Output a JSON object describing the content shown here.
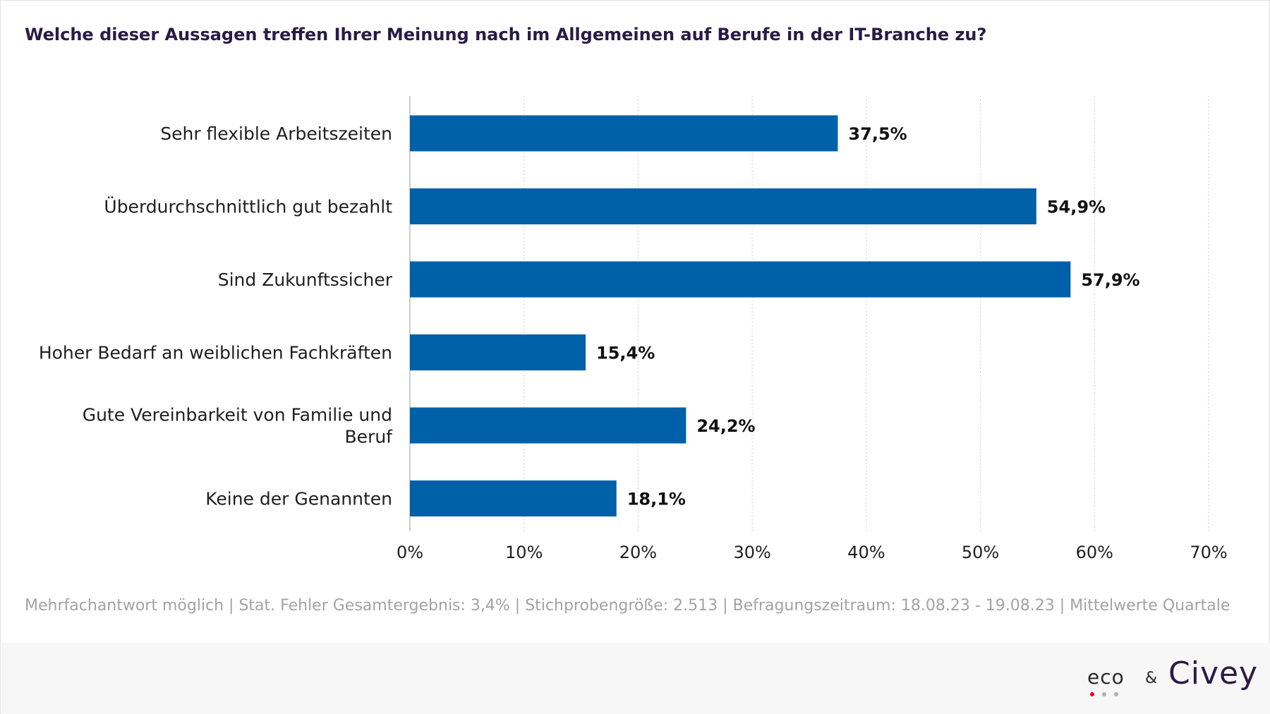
{
  "title": "Welche dieser Aussagen treffen Ihrer Meinung nach im Allgemeinen auf Berufe in der IT-Branche zu?",
  "footnote": "Mehrfachantwort möglich | Stat. Fehler Gesamtergebnis: 3,4% | Stichprobengröße: 2.513 | Befragungszeitraum: 18.08.23 - 19.08.23 | Mittelwerte Quartale",
  "brand": {
    "logo_eco": "eco",
    "ampersand": "&",
    "logo_civey": "Civey",
    "eco_dot_colors": [
      "#e3001b",
      "#b0b0b0",
      "#b0b0b0"
    ]
  },
  "colors": {
    "bar": "#0060a8",
    "grid": "#d6d6d6"
  },
  "chart_data": {
    "type": "bar",
    "orientation": "horizontal",
    "categories": [
      [
        "Sehr flexible Arbeitszeiten"
      ],
      [
        "Überdurchschnittlich gut bezahlt"
      ],
      [
        "Sind Zukunftssicher"
      ],
      [
        "Hoher Bedarf an weiblichen Fachkräften"
      ],
      [
        "Gute Vereinbarkeit von Familie und",
        "Beruf"
      ],
      [
        "Keine der Genannten"
      ]
    ],
    "values": [
      37.5,
      54.9,
      57.9,
      15.4,
      24.2,
      18.1
    ],
    "value_labels": [
      "37,5%",
      "54,9%",
      "57,9%",
      "15,4%",
      "24,2%",
      "18,1%"
    ],
    "xlim": [
      0,
      70
    ],
    "ticks": [
      0,
      10,
      20,
      30,
      40,
      50,
      60,
      70
    ],
    "tick_labels": [
      "0%",
      "10%",
      "20%",
      "30%",
      "40%",
      "50%",
      "60%",
      "70%"
    ],
    "grid": true
  }
}
